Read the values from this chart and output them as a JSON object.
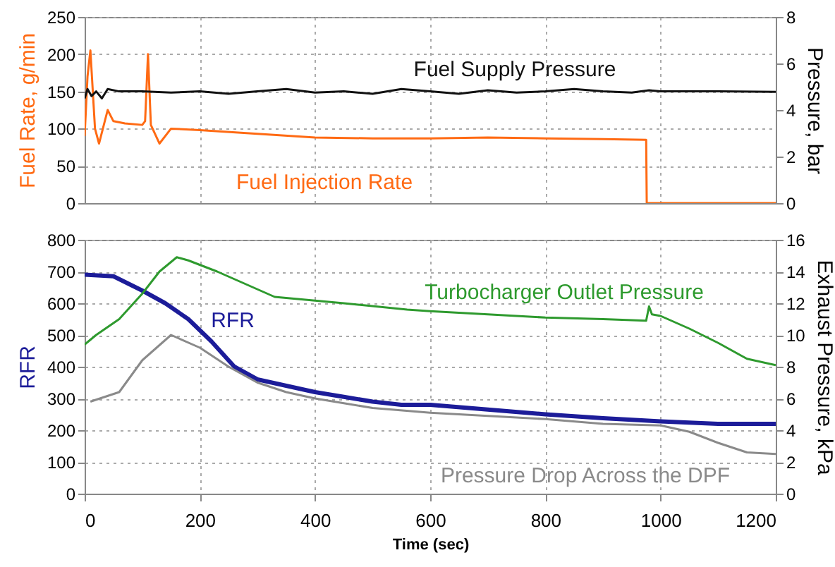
{
  "chart_data": [
    {
      "type": "line",
      "ylabel": "Fuel Rate, g/min",
      "y2label": "Pressure, bar",
      "xlim": [
        0,
        1200
      ],
      "xticks": [
        0,
        200,
        400,
        600,
        800,
        1000,
        1200
      ],
      "ylim": [
        0,
        250
      ],
      "yticks": [
        0,
        50,
        100,
        150,
        200,
        250
      ],
      "y2lim": [
        0,
        8
      ],
      "y2ticks": [
        0,
        2,
        4,
        6,
        8
      ],
      "grid": true,
      "tick_labels": "y",
      "series": [
        {
          "name": "Fuel Supply Pressure",
          "color": "#111111",
          "axis": "y2",
          "x": [
            0,
            5,
            12,
            20,
            30,
            40,
            60,
            100,
            150,
            200,
            250,
            300,
            350,
            400,
            450,
            500,
            550,
            600,
            650,
            700,
            750,
            800,
            850,
            900,
            950,
            980,
            1000,
            1100,
            1200
          ],
          "values": [
            4.5,
            4.9,
            4.6,
            4.8,
            4.5,
            4.9,
            4.8,
            4.8,
            4.75,
            4.8,
            4.7,
            4.8,
            4.9,
            4.75,
            4.8,
            4.7,
            4.9,
            4.8,
            4.7,
            4.85,
            4.75,
            4.8,
            4.9,
            4.8,
            4.75,
            4.85,
            4.8,
            4.8,
            4.78
          ]
        },
        {
          "name": "Fuel Injection Rate",
          "color": "#ff6a13",
          "x": [
            0,
            5,
            10,
            18,
            25,
            40,
            50,
            70,
            100,
            105,
            110,
            115,
            130,
            150,
            200,
            300,
            400,
            500,
            600,
            700,
            800,
            900,
            975,
            976,
            1200
          ],
          "values": [
            90,
            170,
            205,
            100,
            80,
            125,
            110,
            107,
            105,
            110,
            200,
            105,
            80,
            100,
            98,
            93,
            88,
            87,
            87,
            88,
            87,
            86,
            85,
            0,
            0
          ]
        }
      ]
    },
    {
      "type": "line",
      "ylabel": "RFR",
      "y2label": "Exhaust Pressure, kPa",
      "xlabel": "Time (sec)",
      "xlim": [
        0,
        1200
      ],
      "xticks": [
        0,
        200,
        400,
        600,
        800,
        1000,
        1200
      ],
      "ylim": [
        0,
        800
      ],
      "yticks": [
        0,
        100,
        200,
        300,
        400,
        500,
        600,
        700,
        800
      ],
      "y2lim": [
        0,
        16
      ],
      "y2ticks": [
        0,
        2,
        4,
        6,
        8,
        10,
        12,
        14,
        16
      ],
      "grid": true,
      "series": [
        {
          "name": "RFR",
          "color": "#1c1c99",
          "x": [
            0,
            50,
            100,
            140,
            180,
            220,
            260,
            300,
            350,
            400,
            450,
            500,
            550,
            600,
            700,
            800,
            900,
            1000,
            1100,
            1200
          ],
          "values": [
            690,
            685,
            640,
            600,
            550,
            480,
            400,
            360,
            340,
            320,
            305,
            290,
            280,
            280,
            265,
            250,
            238,
            228,
            220,
            220
          ]
        },
        {
          "name": "Turbocharger Outlet Pressure",
          "color": "#2e9a2e",
          "axis": "y2",
          "x": [
            0,
            20,
            60,
            100,
            130,
            160,
            180,
            230,
            330,
            450,
            560,
            600,
            700,
            800,
            900,
            975,
            980,
            985,
            1000,
            1050,
            1100,
            1150,
            1200
          ],
          "values": [
            9.4,
            10,
            11,
            12.6,
            14,
            14.9,
            14.7,
            14,
            12.4,
            12,
            11.6,
            11.5,
            11.3,
            11.1,
            11,
            10.9,
            11.8,
            11.3,
            11.2,
            10.4,
            9.5,
            8.5,
            8.1
          ]
        },
        {
          "name": "Pressure Drop Across the DPF",
          "color": "#8a8a8a",
          "axis": "y2",
          "x": [
            10,
            60,
            100,
            150,
            200,
            250,
            300,
            350,
            400,
            450,
            500,
            600,
            700,
            800,
            900,
            1000,
            1050,
            1100,
            1150,
            1200
          ],
          "values": [
            5.8,
            6.4,
            8.4,
            10,
            9.2,
            8,
            7,
            6.4,
            6,
            5.7,
            5.4,
            5.1,
            4.9,
            4.7,
            4.4,
            4.3,
            3.9,
            3.2,
            2.6,
            2.5
          ]
        }
      ]
    }
  ]
}
